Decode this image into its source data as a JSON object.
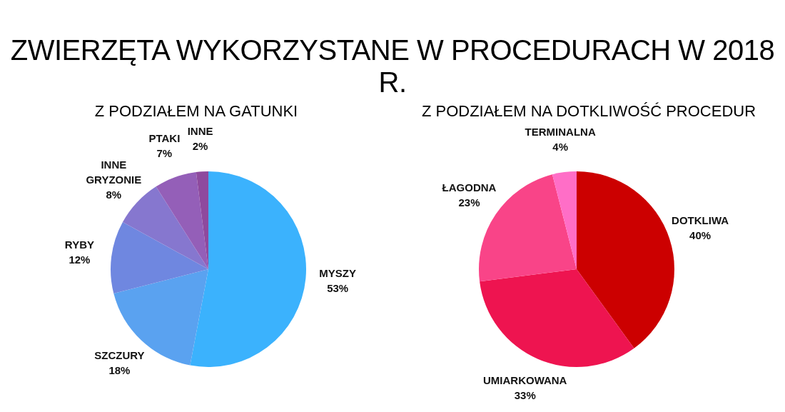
{
  "chart_data": [
    {
      "type": "pie",
      "title": "ZWIERZĘTA WYKORZYSTANE W PROCEDURACH W 2018 R.",
      "subtitle": "Z PODZIAŁEM NA GATUNKI",
      "categories": [
        "MYSZY",
        "SZCZURY",
        "RYBY",
        "INNE GRYZONIE",
        "PTAKI",
        "INNE"
      ],
      "values": [
        53,
        18,
        12,
        8,
        7,
        2
      ],
      "colors": [
        "#3bb2fd",
        "#5aa2f0",
        "#6f87e0",
        "#8677cf",
        "#945fb8",
        "#8e4a9e"
      ],
      "value_labels": [
        "53%",
        "18%",
        "12%",
        "8%",
        "7%",
        "2%"
      ],
      "legend": false
    },
    {
      "type": "pie",
      "subtitle": "Z PODZIAŁEM NA DOTKLIWOŚĆ PROCEDUR",
      "categories": [
        "DOTKLIWA",
        "UMIARKOWANA",
        "ŁAGODNA",
        "TERMINALNA"
      ],
      "values": [
        40,
        33,
        23,
        4
      ],
      "colors": [
        "#cc0000",
        "#ee1450",
        "#f94488",
        "#ff6ec7"
      ],
      "value_labels": [
        "40%",
        "33%",
        "23%",
        "4%"
      ],
      "legend": false
    }
  ]
}
